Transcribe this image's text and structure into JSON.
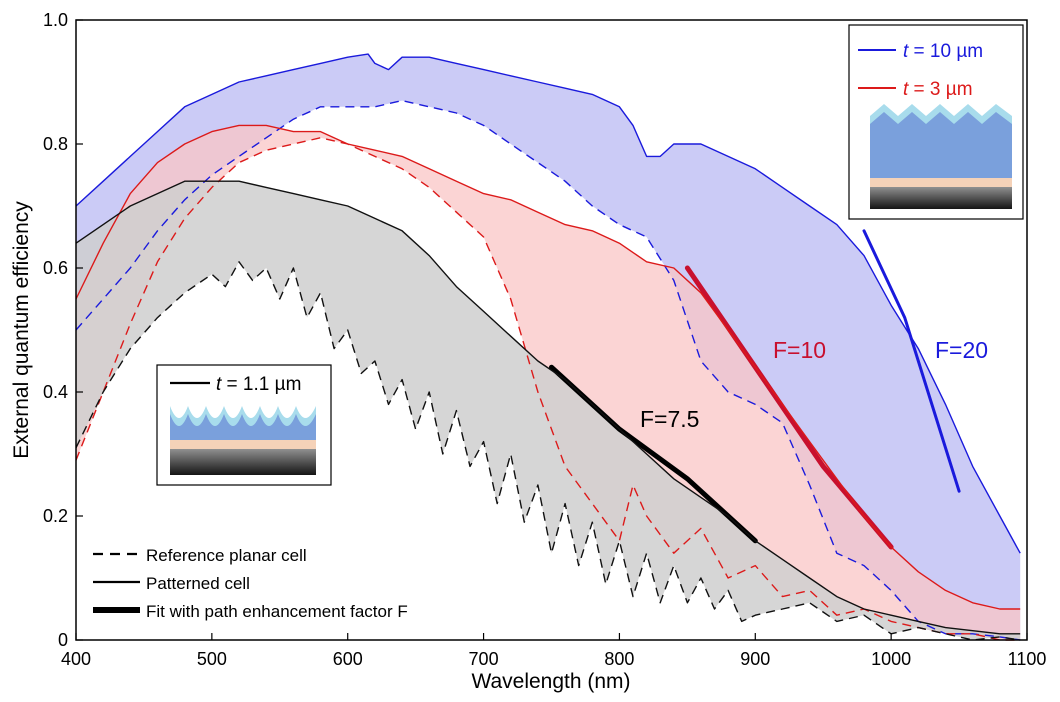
{
  "chart_data": {
    "type": "line",
    "title": "",
    "xlabel": "Wavelength (nm)",
    "ylabel": "External quantum efficiency",
    "xlim": [
      400,
      1100
    ],
    "ylim": [
      0,
      1.0
    ],
    "x_ticks": [
      400,
      500,
      600,
      700,
      800,
      900,
      1000,
      1100
    ],
    "y_ticks": [
      0,
      0.2,
      0.4,
      0.6,
      0.8,
      1.0
    ],
    "x_tick_labels": [
      "400",
      "500",
      "600",
      "700",
      "800",
      "900",
      "1000",
      "1100"
    ],
    "y_tick_labels": [
      "0",
      "0.2",
      "0.4",
      "0.6",
      "0.8",
      "1.0"
    ],
    "grid": false,
    "legend_main": [
      {
        "label": "Reference planar cell",
        "style": "dashed"
      },
      {
        "label": "Patterned cell",
        "style": "solid"
      },
      {
        "label": "Fit with path enhancement factor F",
        "style": "thick"
      }
    ],
    "legend_thick": {
      "prefix": "t",
      "suffix": " = 10 µm"
    },
    "legend_medium": {
      "prefix": "t",
      "suffix": " = 3 µm"
    },
    "legend_thin": {
      "prefix": "t",
      "suffix": " = 1.1 µm"
    },
    "annotations": [
      "F=7.5",
      "F=10",
      "F=20"
    ],
    "colors": {
      "t10": "#1a1adc",
      "t3": "#dc1a1a",
      "t1": "#111111",
      "fill10": "#c8c8f5",
      "fill3": "#f9c5c5",
      "fill1": "#cfcfcf",
      "fit10": "#c8102e",
      "fit1": "#000000"
    },
    "series": [
      {
        "group": "t10",
        "style": "solid",
        "x": [
          400,
          420,
          440,
          460,
          480,
          500,
          520,
          540,
          560,
          580,
          600,
          615,
          620,
          630,
          640,
          660,
          680,
          700,
          720,
          740,
          760,
          780,
          800,
          810,
          820,
          830,
          840,
          860,
          880,
          900,
          920,
          940,
          960,
          980,
          1000,
          1020,
          1040,
          1060,
          1080,
          1095
        ],
        "y": [
          0.7,
          0.74,
          0.78,
          0.82,
          0.86,
          0.88,
          0.9,
          0.91,
          0.92,
          0.93,
          0.94,
          0.945,
          0.93,
          0.92,
          0.94,
          0.94,
          0.93,
          0.92,
          0.91,
          0.9,
          0.89,
          0.88,
          0.86,
          0.83,
          0.78,
          0.78,
          0.8,
          0.8,
          0.78,
          0.76,
          0.73,
          0.7,
          0.67,
          0.62,
          0.54,
          0.47,
          0.38,
          0.28,
          0.2,
          0.14
        ]
      },
      {
        "group": "t10",
        "style": "dashed",
        "x": [
          400,
          420,
          440,
          460,
          480,
          500,
          520,
          540,
          560,
          580,
          600,
          620,
          640,
          660,
          680,
          700,
          720,
          740,
          760,
          780,
          800,
          820,
          840,
          860,
          880,
          900,
          920,
          940,
          960,
          980,
          1000,
          1020,
          1040,
          1060,
          1080,
          1095
        ],
        "y": [
          0.5,
          0.55,
          0.6,
          0.66,
          0.71,
          0.75,
          0.78,
          0.81,
          0.84,
          0.86,
          0.86,
          0.86,
          0.87,
          0.86,
          0.85,
          0.83,
          0.8,
          0.77,
          0.74,
          0.7,
          0.67,
          0.65,
          0.58,
          0.45,
          0.4,
          0.38,
          0.35,
          0.25,
          0.14,
          0.12,
          0.08,
          0.03,
          0.01,
          0.01,
          0.005,
          0.0
        ]
      },
      {
        "group": "t3",
        "style": "solid",
        "x": [
          400,
          420,
          440,
          460,
          480,
          500,
          520,
          540,
          560,
          580,
          600,
          620,
          640,
          660,
          680,
          700,
          720,
          740,
          760,
          780,
          800,
          820,
          840,
          860,
          880,
          900,
          920,
          940,
          960,
          980,
          1000,
          1020,
          1040,
          1060,
          1080,
          1095
        ],
        "y": [
          0.55,
          0.64,
          0.72,
          0.77,
          0.8,
          0.82,
          0.83,
          0.83,
          0.82,
          0.82,
          0.8,
          0.79,
          0.78,
          0.76,
          0.74,
          0.72,
          0.71,
          0.69,
          0.67,
          0.66,
          0.64,
          0.61,
          0.6,
          0.56,
          0.5,
          0.44,
          0.38,
          0.32,
          0.26,
          0.2,
          0.15,
          0.11,
          0.08,
          0.06,
          0.05,
          0.05
        ]
      },
      {
        "group": "t3",
        "style": "dashed",
        "x": [
          400,
          420,
          440,
          460,
          480,
          500,
          520,
          540,
          560,
          580,
          600,
          620,
          640,
          660,
          680,
          700,
          720,
          740,
          760,
          780,
          800,
          810,
          820,
          840,
          860,
          880,
          900,
          920,
          940,
          960,
          980,
          1000,
          1020,
          1040,
          1060,
          1080,
          1095
        ],
        "y": [
          0.29,
          0.4,
          0.51,
          0.61,
          0.68,
          0.73,
          0.77,
          0.79,
          0.8,
          0.81,
          0.8,
          0.78,
          0.76,
          0.73,
          0.69,
          0.65,
          0.55,
          0.4,
          0.28,
          0.22,
          0.16,
          0.25,
          0.2,
          0.14,
          0.18,
          0.1,
          0.12,
          0.07,
          0.08,
          0.04,
          0.05,
          0.03,
          0.02,
          0.01,
          0.01,
          0.0,
          0.0
        ]
      },
      {
        "group": "t1",
        "style": "solid",
        "x": [
          400,
          420,
          440,
          460,
          480,
          500,
          520,
          540,
          560,
          580,
          600,
          620,
          640,
          660,
          680,
          700,
          720,
          740,
          760,
          780,
          800,
          820,
          840,
          860,
          880,
          900,
          920,
          940,
          960,
          980,
          1000,
          1020,
          1040,
          1060,
          1080,
          1095
        ],
        "y": [
          0.64,
          0.67,
          0.7,
          0.72,
          0.74,
          0.74,
          0.74,
          0.73,
          0.72,
          0.71,
          0.7,
          0.68,
          0.66,
          0.62,
          0.57,
          0.53,
          0.49,
          0.45,
          0.42,
          0.38,
          0.34,
          0.3,
          0.26,
          0.23,
          0.2,
          0.16,
          0.13,
          0.1,
          0.07,
          0.05,
          0.04,
          0.03,
          0.02,
          0.015,
          0.01,
          0.01
        ]
      },
      {
        "group": "t1",
        "style": "dashed",
        "x": [
          400,
          420,
          440,
          460,
          480,
          500,
          510,
          520,
          530,
          540,
          550,
          560,
          570,
          580,
          590,
          600,
          610,
          620,
          630,
          640,
          650,
          660,
          670,
          680,
          690,
          700,
          710,
          720,
          730,
          740,
          750,
          760,
          770,
          780,
          790,
          800,
          810,
          820,
          830,
          840,
          850,
          860,
          870,
          880,
          890,
          900,
          920,
          940,
          960,
          980,
          1000,
          1020,
          1040,
          1060,
          1080,
          1095
        ],
        "y": [
          0.31,
          0.4,
          0.47,
          0.52,
          0.56,
          0.59,
          0.57,
          0.61,
          0.58,
          0.6,
          0.55,
          0.6,
          0.52,
          0.56,
          0.47,
          0.5,
          0.43,
          0.45,
          0.38,
          0.42,
          0.34,
          0.4,
          0.3,
          0.37,
          0.28,
          0.32,
          0.22,
          0.3,
          0.19,
          0.25,
          0.14,
          0.22,
          0.12,
          0.19,
          0.09,
          0.16,
          0.07,
          0.14,
          0.06,
          0.12,
          0.06,
          0.1,
          0.05,
          0.08,
          0.03,
          0.04,
          0.05,
          0.06,
          0.03,
          0.04,
          0.01,
          0.02,
          0.01,
          0.0,
          0.005,
          0.0
        ]
      }
    ],
    "fits": [
      {
        "group": "t1",
        "x": [
          750,
          800,
          850,
          900
        ],
        "y": [
          0.44,
          0.34,
          0.26,
          0.16
        ]
      },
      {
        "group": "t3",
        "x": [
          850,
          900,
          950,
          1000
        ],
        "y": [
          0.6,
          0.44,
          0.28,
          0.15
        ]
      },
      {
        "group": "t10",
        "x": [
          980,
          1010,
          1030,
          1050
        ],
        "y": [
          0.66,
          0.52,
          0.38,
          0.24
        ]
      }
    ]
  }
}
